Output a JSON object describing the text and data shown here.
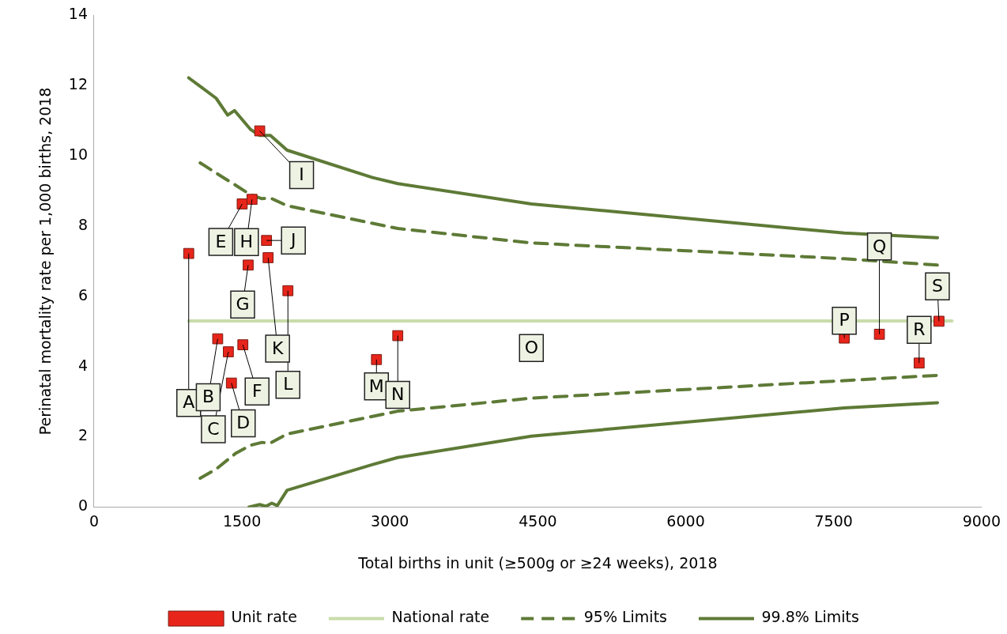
{
  "chart_data": {
    "type": "scatter",
    "xlabel": "Total births in unit (≥500g or ≥24 weeks), 2018",
    "ylabel": "Perinatal mortality rate per 1,000 births, 2018",
    "xlim": [
      0,
      9000
    ],
    "xticks": [
      0,
      1500,
      3000,
      4500,
      6000,
      7500,
      9000
    ],
    "ylim": [
      0,
      14
    ],
    "yticks": [
      0,
      2,
      4,
      6,
      8,
      10,
      12,
      14
    ],
    "grid": false,
    "legend": "bottom",
    "series": [
      {
        "name": "Unit rate",
        "type": "scatter",
        "marker": "square",
        "color": "#e8251b",
        "x": [
          960,
          1254,
          1362,
          1393,
          1502,
          1509,
          1563,
          1602,
          1680,
          1749,
          1765,
          1966,
          2864,
          3080,
          4435,
          7608,
          7964,
          8367,
          8568
        ],
        "values": [
          7.22,
          4.79,
          4.42,
          3.53,
          8.63,
          4.62,
          6.89,
          8.76,
          10.71,
          7.59,
          7.1,
          6.16,
          4.2,
          4.88,
          4.53,
          4.81,
          4.92,
          4.1,
          5.29
        ],
        "value_labels": [
          "A",
          "B",
          "C",
          "D",
          "E",
          "F",
          "G",
          "H",
          "I",
          "J",
          "K",
          "L",
          "M",
          "N",
          "O",
          "P",
          "Q",
          "R",
          "S"
        ]
      },
      {
        "name": "National rate",
        "type": "line",
        "color": "#c8dcaa",
        "line_style": "solid",
        "x": [
          960,
          8700
        ],
        "values": [
          5.3,
          5.3
        ]
      },
      {
        "name": "95% Limits",
        "type": "line",
        "color": "#5e7a36",
        "line_style": "dashed",
        "x": [
          1076,
          1238,
          1432,
          1587,
          1703,
          1788,
          1958,
          3080,
          4435,
          7608,
          8553
        ],
        "values": [
          9.8,
          9.51,
          9.17,
          8.89,
          8.78,
          8.8,
          8.58,
          7.93,
          7.52,
          7.07,
          6.89
        ]
      },
      {
        "type": "line",
        "color": "#5e7a36",
        "line_style": "dashed",
        "x": [
          1076,
          1238,
          1432,
          1587,
          1703,
          1788,
          1958,
          3080,
          4435,
          7608,
          8553
        ],
        "values": [
          0.82,
          1.08,
          1.52,
          1.76,
          1.84,
          1.82,
          2.08,
          2.73,
          3.1,
          3.6,
          3.75
        ]
      },
      {
        "name": "99.8% Limits",
        "type": "line",
        "color": "#5e7a36",
        "line_style": "solid",
        "x": [
          960,
          1238,
          1355,
          1424,
          1587,
          1680,
          1788,
          1958,
          2825,
          3080,
          4435,
          7608,
          8553
        ],
        "values": [
          12.22,
          11.64,
          11.16,
          11.29,
          10.75,
          10.58,
          10.58,
          10.16,
          9.38,
          9.21,
          8.63,
          7.8,
          7.67
        ]
      },
      {
        "type": "line",
        "color": "#5e7a36",
        "line_style": "solid",
        "x": [
          1571,
          1680,
          1742,
          1803,
          1858,
          1958,
          2825,
          3080,
          4435,
          7608,
          8553
        ],
        "values": [
          0,
          0.07,
          0.02,
          0.11,
          0.04,
          0.48,
          1.21,
          1.41,
          2.02,
          2.82,
          2.97
        ]
      }
    ]
  }
}
